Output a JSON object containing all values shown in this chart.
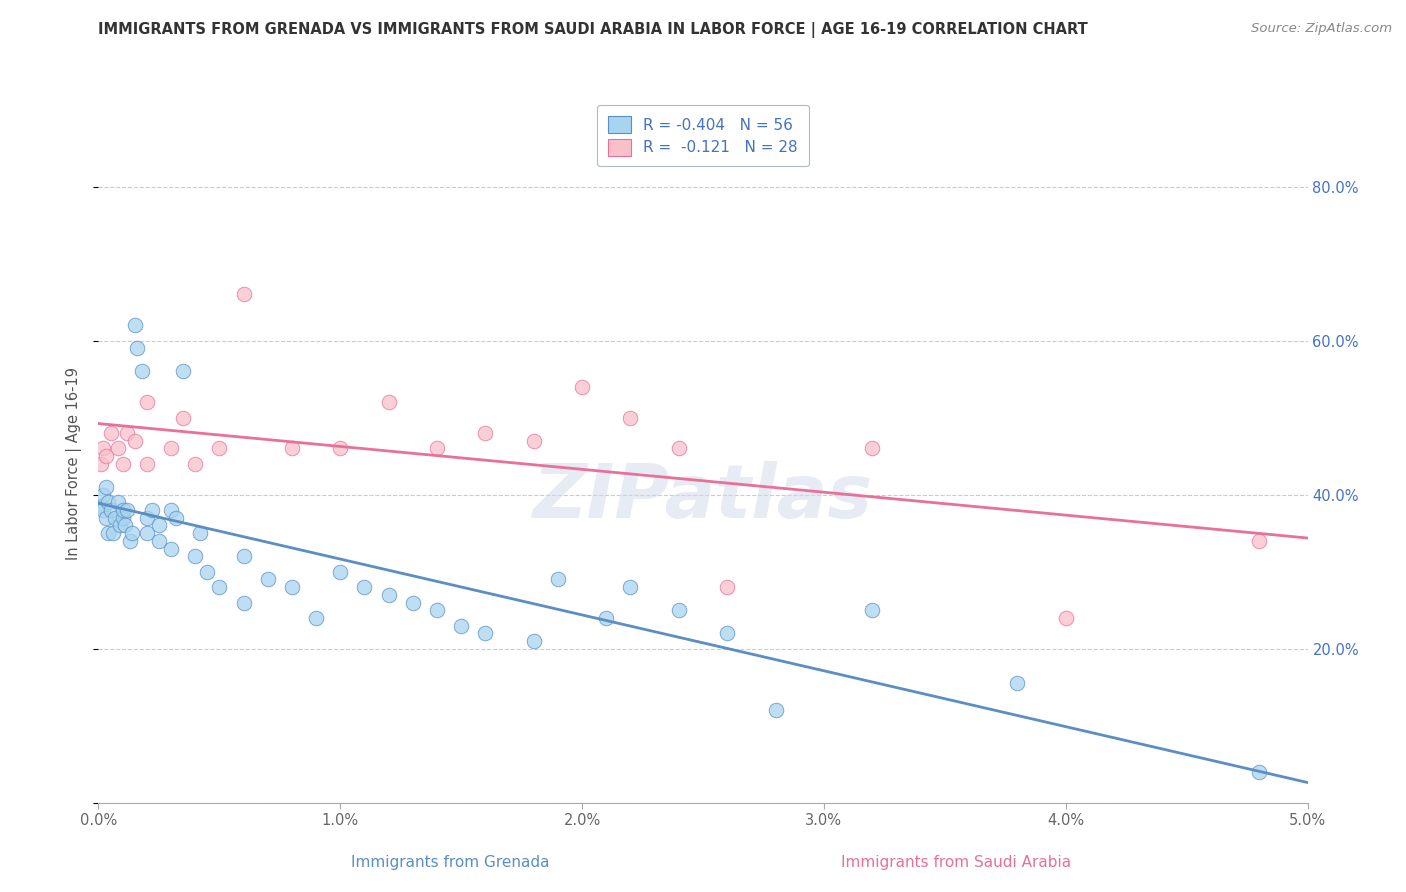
{
  "title": "IMMIGRANTS FROM GRENADA VS IMMIGRANTS FROM SAUDI ARABIA IN LABOR FORCE | AGE 16-19 CORRELATION CHART",
  "source": "Source: ZipAtlas.com",
  "xlabel_grenada": "Immigrants from Grenada",
  "xlabel_saudi": "Immigrants from Saudi Arabia",
  "ylabel": "In Labor Force | Age 16-19",
  "xlim": [
    0.0,
    0.05
  ],
  "ylim": [
    0.0,
    0.88
  ],
  "xticks": [
    0.0,
    0.01,
    0.02,
    0.03,
    0.04,
    0.05
  ],
  "xticklabels": [
    "0.0%",
    "1.0%",
    "2.0%",
    "3.0%",
    "4.0%",
    "5.0%"
  ],
  "yticks": [
    0.0,
    0.2,
    0.4,
    0.6,
    0.8
  ],
  "yticklabels": [
    "",
    "20.0%",
    "40.0%",
    "60.0%",
    "80.0%"
  ],
  "R_grenada": -0.404,
  "N_grenada": 56,
  "R_saudi": -0.121,
  "N_saudi": 28,
  "color_grenada": "#a8d4f0",
  "color_saudi": "#f9c0cb",
  "line_color_grenada": "#5b8ec4",
  "line_color_saudi": "#e87099",
  "background_color": "#ffffff",
  "grid_color": "#cccccc",
  "watermark": "ZIPatlas",
  "legend_text_color": "#4472c4",
  "grenada_x": [
    0.0001,
    0.0002,
    0.0002,
    0.0003,
    0.0003,
    0.0004,
    0.0004,
    0.0005,
    0.0006,
    0.0007,
    0.0008,
    0.0009,
    0.001,
    0.001,
    0.0011,
    0.0012,
    0.0013,
    0.0014,
    0.0015,
    0.0016,
    0.0018,
    0.002,
    0.002,
    0.0022,
    0.0025,
    0.0025,
    0.003,
    0.003,
    0.0032,
    0.0035,
    0.004,
    0.0042,
    0.0045,
    0.005,
    0.006,
    0.006,
    0.007,
    0.008,
    0.009,
    0.01,
    0.011,
    0.012,
    0.013,
    0.014,
    0.015,
    0.016,
    0.018,
    0.019,
    0.021,
    0.022,
    0.024,
    0.026,
    0.028,
    0.032,
    0.038,
    0.048
  ],
  "grenada_y": [
    0.385,
    0.4,
    0.38,
    0.37,
    0.41,
    0.35,
    0.39,
    0.38,
    0.35,
    0.37,
    0.39,
    0.36,
    0.37,
    0.38,
    0.36,
    0.38,
    0.34,
    0.35,
    0.62,
    0.59,
    0.56,
    0.37,
    0.35,
    0.38,
    0.36,
    0.34,
    0.38,
    0.33,
    0.37,
    0.56,
    0.32,
    0.35,
    0.3,
    0.28,
    0.32,
    0.26,
    0.29,
    0.28,
    0.24,
    0.3,
    0.28,
    0.27,
    0.26,
    0.25,
    0.23,
    0.22,
    0.21,
    0.29,
    0.24,
    0.28,
    0.25,
    0.22,
    0.12,
    0.25,
    0.155,
    0.04
  ],
  "saudi_x": [
    0.0001,
    0.0002,
    0.0003,
    0.0005,
    0.0008,
    0.001,
    0.0012,
    0.0015,
    0.002,
    0.002,
    0.003,
    0.0035,
    0.004,
    0.005,
    0.006,
    0.008,
    0.01,
    0.012,
    0.014,
    0.016,
    0.018,
    0.02,
    0.022,
    0.024,
    0.026,
    0.032,
    0.04,
    0.048
  ],
  "saudi_y": [
    0.44,
    0.46,
    0.45,
    0.48,
    0.46,
    0.44,
    0.48,
    0.47,
    0.44,
    0.52,
    0.46,
    0.5,
    0.44,
    0.46,
    0.66,
    0.46,
    0.46,
    0.52,
    0.46,
    0.48,
    0.47,
    0.54,
    0.5,
    0.46,
    0.28,
    0.46,
    0.24,
    0.34
  ]
}
